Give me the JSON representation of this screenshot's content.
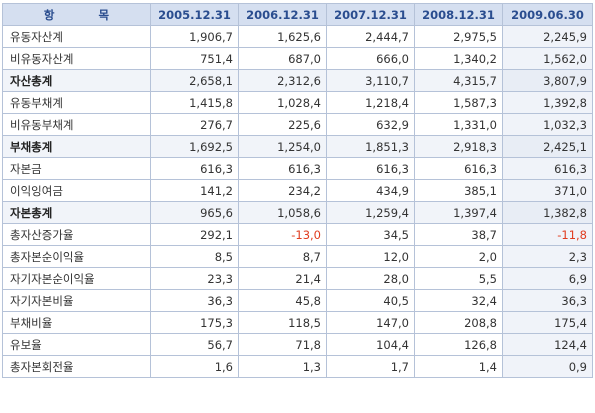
{
  "header": {
    "item_label_left": "항",
    "item_label_right": "목",
    "periods": [
      "2005.12.31",
      "2006.12.31",
      "2007.12.31",
      "2008.12.31",
      "2009.06.30"
    ]
  },
  "rows": [
    {
      "label": "유동자산계",
      "bold": false,
      "values": [
        "1,906,7",
        "1,625,6",
        "2,444,7",
        "2,975,5",
        "2,245,9"
      ],
      "neg": [
        false,
        false,
        false,
        false,
        false
      ]
    },
    {
      "label": "비유동자산계",
      "bold": false,
      "values": [
        "751,4",
        "687,0",
        "666,0",
        "1,340,2",
        "1,562,0"
      ],
      "neg": [
        false,
        false,
        false,
        false,
        false
      ]
    },
    {
      "label": "자산총계",
      "bold": true,
      "values": [
        "2,658,1",
        "2,312,6",
        "3,110,7",
        "4,315,7",
        "3,807,9"
      ],
      "neg": [
        false,
        false,
        false,
        false,
        false
      ]
    },
    {
      "label": "유동부채계",
      "bold": false,
      "values": [
        "1,415,8",
        "1,028,4",
        "1,218,4",
        "1,587,3",
        "1,392,8"
      ],
      "neg": [
        false,
        false,
        false,
        false,
        false
      ]
    },
    {
      "label": "비유동부채계",
      "bold": false,
      "values": [
        "276,7",
        "225,6",
        "632,9",
        "1,331,0",
        "1,032,3"
      ],
      "neg": [
        false,
        false,
        false,
        false,
        false
      ]
    },
    {
      "label": "부채총계",
      "bold": true,
      "values": [
        "1,692,5",
        "1,254,0",
        "1,851,3",
        "2,918,3",
        "2,425,1"
      ],
      "neg": [
        false,
        false,
        false,
        false,
        false
      ]
    },
    {
      "label": "자본금",
      "bold": false,
      "values": [
        "616,3",
        "616,3",
        "616,3",
        "616,3",
        "616,3"
      ],
      "neg": [
        false,
        false,
        false,
        false,
        false
      ]
    },
    {
      "label": "이익잉여금",
      "bold": false,
      "values": [
        "141,2",
        "234,2",
        "434,9",
        "385,1",
        "371,0"
      ],
      "neg": [
        false,
        false,
        false,
        false,
        false
      ]
    },
    {
      "label": "자본총계",
      "bold": true,
      "values": [
        "965,6",
        "1,058,6",
        "1,259,4",
        "1,397,4",
        "1,382,8"
      ],
      "neg": [
        false,
        false,
        false,
        false,
        false
      ]
    },
    {
      "label": "총자산증가율",
      "bold": false,
      "values": [
        "292,1",
        "-13,0",
        "34,5",
        "38,7",
        "-11,8"
      ],
      "neg": [
        false,
        true,
        false,
        false,
        true
      ]
    },
    {
      "label": "총자본순이익율",
      "bold": false,
      "values": [
        "8,5",
        "8,7",
        "12,0",
        "2,0",
        "2,3"
      ],
      "neg": [
        false,
        false,
        false,
        false,
        false
      ]
    },
    {
      "label": "자기자본순이익율",
      "bold": false,
      "values": [
        "23,3",
        "21,4",
        "28,0",
        "5,5",
        "6,9"
      ],
      "neg": [
        false,
        false,
        false,
        false,
        false
      ]
    },
    {
      "label": "자기자본비율",
      "bold": false,
      "values": [
        "36,3",
        "45,8",
        "40,5",
        "32,4",
        "36,3"
      ],
      "neg": [
        false,
        false,
        false,
        false,
        false
      ]
    },
    {
      "label": "부채비율",
      "bold": false,
      "values": [
        "175,3",
        "118,5",
        "147,0",
        "208,8",
        "175,4"
      ],
      "neg": [
        false,
        false,
        false,
        false,
        false
      ]
    },
    {
      "label": "유보율",
      "bold": false,
      "values": [
        "56,7",
        "71,8",
        "104,4",
        "126,8",
        "124,4"
      ],
      "neg": [
        false,
        false,
        false,
        false,
        false
      ]
    },
    {
      "label": "총자본회전율",
      "bold": false,
      "values": [
        "1,6",
        "1,3",
        "1,7",
        "1,4",
        "0,9"
      ],
      "neg": [
        false,
        false,
        false,
        false,
        false
      ]
    }
  ],
  "colors": {
    "header_bg": "#d5dff0",
    "header_text": "#2a4d8f",
    "border": "#b5c2d8",
    "negative": "#e03c1f"
  }
}
